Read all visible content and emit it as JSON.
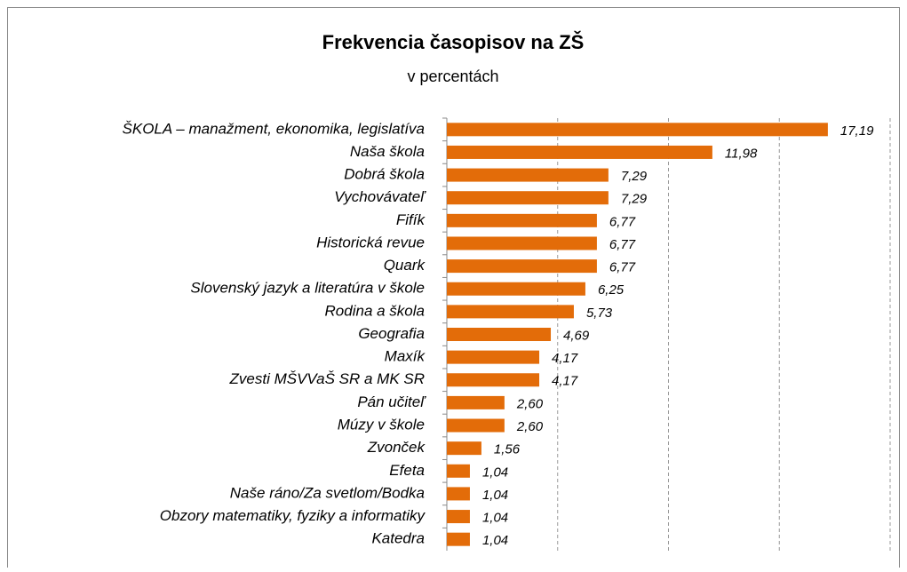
{
  "chart_data": {
    "type": "bar",
    "orientation": "horizontal",
    "title": "Frekvencia časopisov na ZŠ",
    "subtitle": "v percentách",
    "categories": [
      "ŠKOLA – manažment, ekonomika, legislatíva",
      "Naša škola",
      "Dobrá škola",
      "Vychovávateľ",
      "Fifík",
      "Historická revue",
      "Quark",
      "Slovenský jazyk a literatúra v škole",
      "Rodina a škola",
      "Geografia",
      "Maxík",
      "Zvesti MŠVVaŠ SR a MK SR",
      "Pán učiteľ",
      "Múzy v škole",
      "Zvonček",
      "Efeta",
      "Naše ráno/Za svetlom/Bodka",
      "Obzory matematiky, fyziky a informatiky",
      "Katedra"
    ],
    "values": [
      17.19,
      11.98,
      7.29,
      7.29,
      6.77,
      6.77,
      6.77,
      6.25,
      5.73,
      4.69,
      4.17,
      4.17,
      2.6,
      2.6,
      1.56,
      1.04,
      1.04,
      1.04,
      1.04
    ],
    "value_labels": [
      "17,19",
      "11,98",
      "7,29",
      "7,29",
      "6,77",
      "6,77",
      "6,77",
      "6,25",
      "5,73",
      "4,69",
      "4,17",
      "4,17",
      "2,60",
      "2,60",
      "1,56",
      "1,04",
      "1,04",
      "1,04",
      "1,04"
    ],
    "color": "#e36c09",
    "xlim": [
      0,
      20
    ],
    "xticks": [
      0,
      5,
      10,
      15,
      20
    ],
    "grid": true
  }
}
